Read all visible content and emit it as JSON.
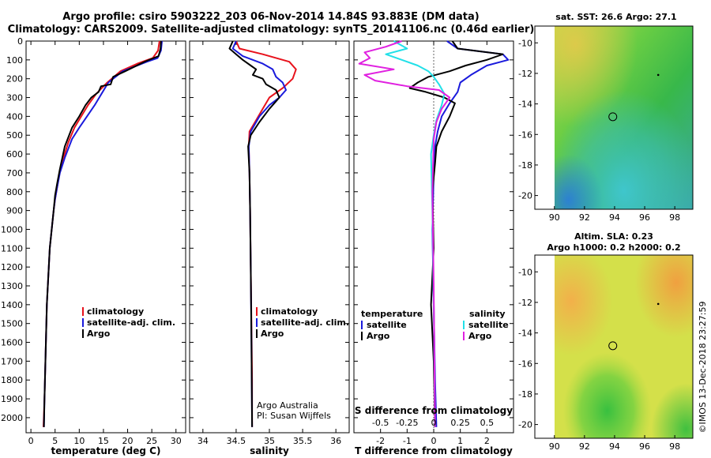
{
  "header": {
    "line1": "Argo profile: csiro 5903222_203 06-Nov-2014 14.84S 93.883E (DM data)",
    "line2": "Climatology: CARS2009. Satellite-adjusted climatology: synTS_20141106.nc (0.46d earlier)"
  },
  "footer_stamp": "©IMOS 13-Dec-2018 23:27:59",
  "colors": {
    "climatology": "#e8121c",
    "satellite": "#1a1adc",
    "argo": "#000000",
    "sat_salinity": "#22e0e8",
    "argo_salinity": "#e020e0"
  },
  "chart_data": [
    {
      "type": "line",
      "title": "",
      "xlabel": "temperature (deg C)",
      "ylabel": "",
      "xlim": [
        -1,
        32
      ],
      "ylim": [
        2080,
        0
      ],
      "x_ticks": [
        0,
        5,
        10,
        15,
        20,
        25,
        30
      ],
      "x_tick_labels": [
        "0",
        "5",
        "10",
        "15",
        "20",
        "25",
        "30"
      ],
      "y_ticks": [
        0,
        100,
        200,
        300,
        400,
        500,
        600,
        700,
        800,
        900,
        1000,
        1100,
        1200,
        1300,
        1400,
        1500,
        1600,
        1700,
        1800,
        1900,
        2000
      ],
      "y_tick_labels": [
        "0",
        "100",
        "200",
        "300",
        "400",
        "500",
        "600",
        "700",
        "800",
        "900",
        "1000",
        "1100",
        "1200",
        "1300",
        "1400",
        "1500",
        "1600",
        "1700",
        "1800",
        "1900",
        "2000"
      ],
      "legend": [
        "climatology",
        "satellite-adj. clim.",
        "Argo"
      ],
      "series": [
        {
          "name": "climatology",
          "color": "#e8121c",
          "x": [
            26.6,
            26.3,
            25.2,
            22.0,
            18.5,
            15.8,
            13.5,
            11.8,
            10.4,
            9.0,
            7.7,
            6.5,
            5.8,
            5.4,
            5.0,
            4.7,
            3.9,
            3.3,
            3.0,
            2.8,
            2.6
          ],
          "y": [
            0,
            50,
            90,
            120,
            160,
            220,
            280,
            340,
            400,
            460,
            540,
            640,
            720,
            780,
            840,
            900,
            1100,
            1400,
            1700,
            1900,
            2050
          ]
        },
        {
          "name": "satellite-adj. clim.",
          "color": "#1a1adc",
          "x": [
            27.1,
            26.9,
            26.2,
            24.0,
            19.0,
            16.0,
            14.6,
            13.2,
            11.6,
            10.0,
            8.5,
            7.0,
            6.0,
            5.4,
            5.0,
            4.7,
            3.9,
            3.3,
            3.0,
            2.8,
            2.7
          ],
          "y": [
            0,
            50,
            90,
            110,
            160,
            220,
            280,
            340,
            400,
            460,
            520,
            620,
            700,
            780,
            840,
            900,
            1100,
            1400,
            1700,
            1900,
            2050
          ]
        },
        {
          "name": "Argo",
          "color": "#000000",
          "x": [
            26.9,
            26.8,
            26.4,
            23.5,
            19.5,
            17.0,
            16.5,
            14.5,
            14.0,
            12.5,
            11.3,
            10.0,
            8.5,
            7.0,
            6.0,
            5.4,
            5.0,
            4.7,
            3.9,
            3.3,
            3.0,
            2.8,
            2.7
          ],
          "y": [
            0,
            40,
            80,
            110,
            160,
            190,
            230,
            240,
            270,
            300,
            340,
            400,
            460,
            560,
            680,
            760,
            820,
            900,
            1100,
            1400,
            1700,
            1900,
            2050
          ]
        }
      ]
    },
    {
      "type": "line",
      "title": "",
      "xlabel": "salinity",
      "ylabel": "",
      "xlim": [
        33.8,
        36.2
      ],
      "ylim": [
        2080,
        0
      ],
      "x_ticks": [
        34,
        34.5,
        35,
        35.5,
        36
      ],
      "x_tick_labels": [
        "34",
        "34.5",
        "35",
        "35.5",
        "36"
      ],
      "legend": [
        "climatology",
        "satellite-adj. clim.",
        "Argo"
      ],
      "annotation": [
        "Argo Australia",
        "PI: Susan Wijffels"
      ],
      "series": [
        {
          "name": "climatology",
          "color": "#e8121c",
          "x": [
            34.5,
            34.55,
            34.9,
            35.3,
            35.4,
            35.35,
            35.2,
            35.0,
            34.9,
            34.8,
            34.7,
            34.69,
            34.7,
            34.71,
            34.72,
            34.73,
            34.74,
            34.74
          ],
          "y": [
            0,
            40,
            70,
            110,
            150,
            200,
            250,
            300,
            360,
            420,
            480,
            560,
            700,
            900,
            1200,
            1500,
            1800,
            2050
          ]
        },
        {
          "name": "satellite-adj. clim.",
          "color": "#1a1adc",
          "x": [
            34.5,
            34.45,
            34.6,
            34.9,
            35.05,
            35.1,
            35.2,
            35.25,
            35.15,
            35.0,
            34.85,
            34.72,
            34.69,
            34.7,
            34.71,
            34.72,
            34.73,
            34.74
          ],
          "y": [
            0,
            40,
            80,
            120,
            150,
            190,
            220,
            260,
            300,
            340,
            400,
            480,
            560,
            700,
            900,
            1200,
            1600,
            2050
          ]
        },
        {
          "name": "Argo",
          "color": "#000000",
          "x": [
            34.45,
            34.4,
            34.5,
            34.6,
            34.72,
            34.8,
            34.75,
            34.9,
            34.95,
            35.1,
            35.15,
            35.0,
            34.85,
            34.72,
            34.68,
            34.7,
            34.71,
            34.72,
            34.73,
            34.74
          ],
          "y": [
            0,
            40,
            70,
            100,
            130,
            150,
            180,
            200,
            230,
            260,
            300,
            360,
            430,
            500,
            560,
            700,
            900,
            1200,
            1600,
            2050
          ]
        }
      ]
    },
    {
      "type": "line",
      "title": "",
      "xlabel": "T difference from climatology",
      "xlabel2": "S difference from climatology",
      "ylabel": "",
      "xlim": [
        -3,
        3
      ],
      "ylim": [
        2080,
        0
      ],
      "x_ticks": [
        -2,
        -1,
        0,
        1,
        2
      ],
      "x_tick_labels": [
        "-2",
        "-1",
        "0",
        "1",
        "2"
      ],
      "x2_tick_labels": [
        "-0.5",
        "-0.25",
        "0",
        "0.25",
        "0.5"
      ],
      "legend_temperature_title": "temperature",
      "legend_salinity_title": "salinity",
      "legend_temperature": [
        "satellite",
        "Argo"
      ],
      "legend_salinity": [
        "satellite",
        "Argo"
      ],
      "series": [
        {
          "name": "T satellite",
          "color": "#1a1adc",
          "x": [
            0.5,
            0.9,
            2.6,
            2.8,
            2.0,
            1.4,
            1.0,
            0.9,
            0.6,
            0.3,
            0.15,
            0.05,
            0.0,
            -0.05,
            0.0,
            0.05,
            0.1
          ],
          "y": [
            0,
            40,
            70,
            100,
            130,
            180,
            220,
            270,
            330,
            400,
            480,
            560,
            700,
            1000,
            1400,
            1800,
            2050
          ]
        },
        {
          "name": "T Argo",
          "color": "#000000",
          "x": [
            0.7,
            0.9,
            2.6,
            2.0,
            1.2,
            0.6,
            -0.2,
            -0.6,
            -0.9,
            -0.3,
            0.4,
            0.8,
            0.6,
            0.3,
            0.1,
            0.05,
            -0.05,
            0.0,
            -0.1,
            0.0,
            0.05
          ],
          "y": [
            0,
            40,
            70,
            100,
            130,
            160,
            190,
            220,
            250,
            270,
            300,
            330,
            400,
            480,
            560,
            650,
            800,
            1100,
            1400,
            1700,
            2050
          ]
        },
        {
          "name": "S satellite",
          "color": "#22e0e8",
          "x": [
            -1.5,
            -1.0,
            -1.8,
            -1.2,
            -0.6,
            -0.2,
            0.0,
            0.2,
            0.4,
            0.3,
            0.1,
            0.0,
            -0.1,
            -0.05,
            0.0,
            0.05
          ],
          "y": [
            0,
            40,
            70,
            100,
            130,
            160,
            190,
            230,
            280,
            340,
            420,
            500,
            600,
            900,
            1400,
            2050
          ]
        },
        {
          "name": "S Argo",
          "color": "#e020e0",
          "x": [
            -1.2,
            -1.8,
            -2.6,
            -2.4,
            -2.8,
            -1.5,
            -2.6,
            -2.2,
            -1.0,
            0.2,
            0.6,
            0.3,
            0.1,
            0.0,
            -0.05,
            0.0,
            0.05
          ],
          "y": [
            0,
            30,
            60,
            90,
            120,
            150,
            180,
            210,
            240,
            260,
            300,
            360,
            430,
            520,
            800,
            1300,
            2050
          ]
        }
      ]
    }
  ],
  "maps": {
    "sst": {
      "title": "sat. SST: 26.6 Argo: 27.1",
      "x_ticks": [
        90,
        92,
        94,
        96,
        98
      ],
      "x_tick_labels": [
        "90",
        "92",
        "94",
        "96",
        "98"
      ],
      "y_ticks": [
        -10,
        -12,
        -14,
        -16,
        -18,
        -20
      ],
      "y_tick_labels": [
        "-10",
        "-12",
        "-14",
        "-16",
        "-18",
        "-20"
      ],
      "lon_range": [
        88.7,
        99.2
      ],
      "lat_range": [
        -20.9,
        -8.9
      ],
      "float_lon": 93.883,
      "float_lat": -14.84
    },
    "sla": {
      "title1": "Altim. SLA: 0.23",
      "title2": "Argo h1000: 0.2 h2000: 0.2",
      "x_ticks": [
        90,
        92,
        94,
        96,
        98
      ],
      "x_tick_labels": [
        "90",
        "92",
        "94",
        "96",
        "98"
      ],
      "y_ticks": [
        -10,
        -12,
        -14,
        -16,
        -18,
        -20
      ],
      "y_tick_labels": [
        "-10",
        "-12",
        "-14",
        "-16",
        "-18",
        "-20"
      ],
      "lon_range": [
        88.7,
        99.2
      ],
      "lat_range": [
        -20.9,
        -8.9
      ],
      "float_lon": 93.883,
      "float_lat": -14.84
    }
  }
}
